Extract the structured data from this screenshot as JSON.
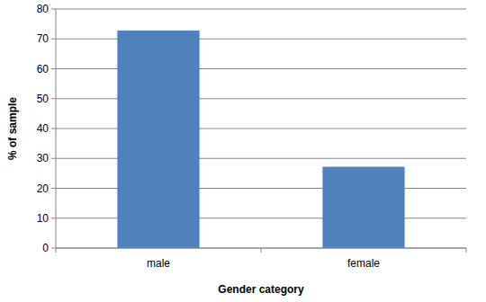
{
  "chart_data": {
    "type": "bar",
    "x_label": "Gender category",
    "y_label": "% of sample",
    "categories": [
      "male",
      "female"
    ],
    "values": [
      72.8,
      27.2
    ],
    "color": "#4f81bd",
    "ylim": [
      0,
      80
    ],
    "yticks": [
      0,
      10,
      20,
      30,
      40,
      50,
      60,
      70,
      80
    ],
    "grid": true
  }
}
